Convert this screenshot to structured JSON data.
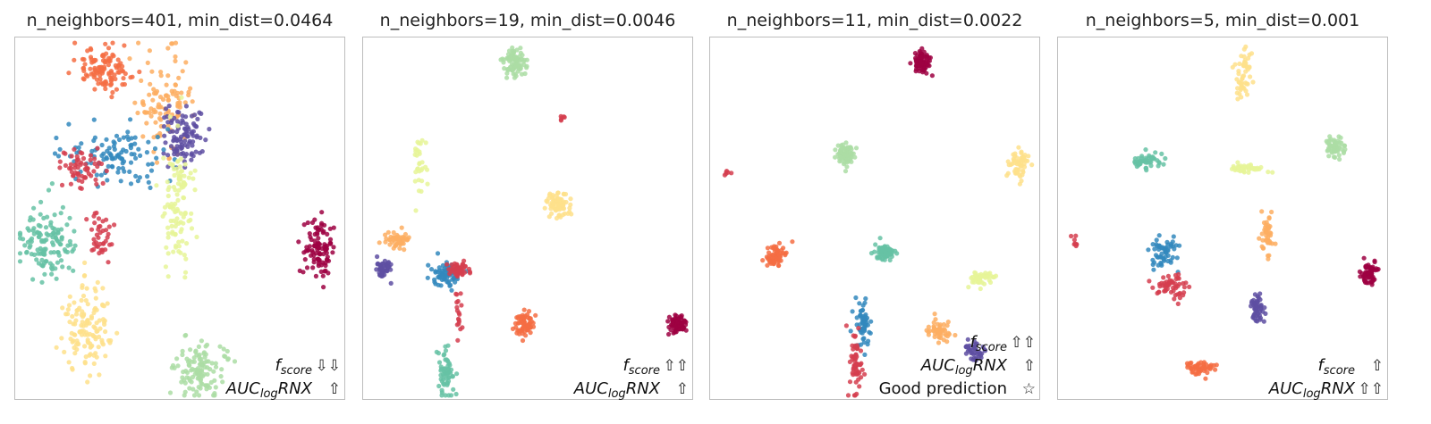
{
  "chart_data": [
    {
      "type": "scatter",
      "title": "n_neighbors=401, min_dist=0.0464",
      "annotations": [
        {
          "label": "f",
          "sub": "score",
          "arrows": "⇩⇩"
        },
        {
          "label": "AUC",
          "sub": "log",
          "suffix": "RNX",
          "arrows": "⇧"
        }
      ],
      "clusters": [
        {
          "color": "#f46d43",
          "cx": 0.27,
          "cy": 0.09,
          "sx": 0.045,
          "sy": 0.03,
          "n": 110
        },
        {
          "color": "#fdae61",
          "cx": 0.45,
          "cy": 0.18,
          "sx": 0.04,
          "sy": 0.06,
          "n": 110
        },
        {
          "color": "#5e4fa2",
          "cx": 0.51,
          "cy": 0.27,
          "sx": 0.035,
          "sy": 0.04,
          "n": 100
        },
        {
          "color": "#3288bd",
          "cx": 0.31,
          "cy": 0.33,
          "sx": 0.08,
          "sy": 0.04,
          "n": 110
        },
        {
          "color": "#d53e4f",
          "cx": 0.2,
          "cy": 0.36,
          "sx": 0.03,
          "sy": 0.025,
          "n": 60
        },
        {
          "color": "#e6f598",
          "cx": 0.49,
          "cy": 0.46,
          "sx": 0.025,
          "sy": 0.1,
          "n": 110
        },
        {
          "color": "#66c2a5",
          "cx": 0.1,
          "cy": 0.57,
          "sx": 0.045,
          "sy": 0.05,
          "n": 130
        },
        {
          "color": "#d53e4f",
          "cx": 0.26,
          "cy": 0.55,
          "sx": 0.02,
          "sy": 0.035,
          "n": 40
        },
        {
          "color": "#9e0142",
          "cx": 0.92,
          "cy": 0.58,
          "sx": 0.02,
          "sy": 0.04,
          "n": 100
        },
        {
          "color": "#fee08b",
          "cx": 0.22,
          "cy": 0.8,
          "sx": 0.035,
          "sy": 0.06,
          "n": 130
        },
        {
          "color": "#abdda4",
          "cx": 0.56,
          "cy": 0.91,
          "sx": 0.04,
          "sy": 0.04,
          "n": 120
        }
      ]
    },
    {
      "type": "scatter",
      "title": "n_neighbors=19, min_dist=0.0046",
      "annotations": [
        {
          "label": "f",
          "sub": "score",
          "arrows": "⇧⇧"
        },
        {
          "label": "AUC",
          "sub": "log",
          "suffix": "RNX",
          "arrows": "⇧"
        }
      ],
      "clusters": [
        {
          "color": "#abdda4",
          "cx": 0.46,
          "cy": 0.07,
          "sx": 0.015,
          "sy": 0.018,
          "n": 90
        },
        {
          "color": "#d53e4f",
          "cx": 0.6,
          "cy": 0.22,
          "sx": 0.006,
          "sy": 0.006,
          "n": 6
        },
        {
          "color": "#e6f598",
          "cx": 0.17,
          "cy": 0.35,
          "sx": 0.01,
          "sy": 0.04,
          "n": 30
        },
        {
          "color": "#fee08b",
          "cx": 0.59,
          "cy": 0.46,
          "sx": 0.02,
          "sy": 0.018,
          "n": 70
        },
        {
          "color": "#fdae61",
          "cx": 0.1,
          "cy": 0.56,
          "sx": 0.02,
          "sy": 0.012,
          "n": 50
        },
        {
          "color": "#5e4fa2",
          "cx": 0.06,
          "cy": 0.64,
          "sx": 0.012,
          "sy": 0.015,
          "n": 45
        },
        {
          "color": "#3288bd",
          "cx": 0.25,
          "cy": 0.65,
          "sx": 0.02,
          "sy": 0.02,
          "n": 70
        },
        {
          "color": "#d53e4f",
          "cx": 0.29,
          "cy": 0.64,
          "sx": 0.015,
          "sy": 0.01,
          "n": 45
        },
        {
          "color": "#d53e4f",
          "cx": 0.29,
          "cy": 0.73,
          "sx": 0.007,
          "sy": 0.04,
          "n": 20
        },
        {
          "color": "#f46d43",
          "cx": 0.49,
          "cy": 0.79,
          "sx": 0.015,
          "sy": 0.018,
          "n": 70
        },
        {
          "color": "#9e0142",
          "cx": 0.95,
          "cy": 0.79,
          "sx": 0.013,
          "sy": 0.013,
          "n": 80
        },
        {
          "color": "#66c2a5",
          "cx": 0.25,
          "cy": 0.92,
          "sx": 0.012,
          "sy": 0.035,
          "n": 60
        }
      ]
    },
    {
      "type": "scatter",
      "title": "n_neighbors=11, min_dist=0.0022",
      "annotations": [
        {
          "label": "f",
          "sub": "score",
          "arrows": "⇧⇧"
        },
        {
          "label": "AUC",
          "sub": "log",
          "suffix": "RNX",
          "arrows": "⇧"
        },
        {
          "label": "Good prediction",
          "arrows": "☆"
        }
      ],
      "clusters": [
        {
          "color": "#9e0142",
          "cx": 0.64,
          "cy": 0.07,
          "sx": 0.013,
          "sy": 0.015,
          "n": 80
        },
        {
          "color": "#abdda4",
          "cx": 0.41,
          "cy": 0.32,
          "sx": 0.015,
          "sy": 0.016,
          "n": 75
        },
        {
          "color": "#d53e4f",
          "cx": 0.05,
          "cy": 0.37,
          "sx": 0.006,
          "sy": 0.006,
          "n": 6
        },
        {
          "color": "#fee08b",
          "cx": 0.93,
          "cy": 0.35,
          "sx": 0.015,
          "sy": 0.02,
          "n": 55
        },
        {
          "color": "#f46d43",
          "cx": 0.2,
          "cy": 0.6,
          "sx": 0.015,
          "sy": 0.016,
          "n": 65
        },
        {
          "color": "#66c2a5",
          "cx": 0.53,
          "cy": 0.59,
          "sx": 0.016,
          "sy": 0.013,
          "n": 65
        },
        {
          "color": "#e6f598",
          "cx": 0.82,
          "cy": 0.66,
          "sx": 0.02,
          "sy": 0.01,
          "n": 45
        },
        {
          "color": "#3288bd",
          "cx": 0.46,
          "cy": 0.78,
          "sx": 0.012,
          "sy": 0.035,
          "n": 60
        },
        {
          "color": "#d53e4f",
          "cx": 0.44,
          "cy": 0.9,
          "sx": 0.01,
          "sy": 0.05,
          "n": 60
        },
        {
          "color": "#fdae61",
          "cx": 0.69,
          "cy": 0.81,
          "sx": 0.02,
          "sy": 0.015,
          "n": 50
        },
        {
          "color": "#5e4fa2",
          "cx": 0.8,
          "cy": 0.86,
          "sx": 0.013,
          "sy": 0.015,
          "n": 40
        }
      ]
    },
    {
      "type": "scatter",
      "title": "n_neighbors=5, min_dist=0.001",
      "annotations": [
        {
          "label": "f",
          "sub": "score",
          "arrows": "⇧"
        },
        {
          "label": "AUC",
          "sub": "log",
          "suffix": "RNX",
          "arrows": "⇧⇧"
        }
      ],
      "clusters": [
        {
          "color": "#fee08b",
          "cx": 0.56,
          "cy": 0.1,
          "sx": 0.012,
          "sy": 0.04,
          "n": 55
        },
        {
          "color": "#66c2a5",
          "cx": 0.27,
          "cy": 0.34,
          "sx": 0.02,
          "sy": 0.013,
          "n": 50
        },
        {
          "color": "#e6f598",
          "cx": 0.56,
          "cy": 0.36,
          "sx": 0.03,
          "sy": 0.006,
          "n": 40
        },
        {
          "color": "#abdda4",
          "cx": 0.84,
          "cy": 0.3,
          "sx": 0.014,
          "sy": 0.016,
          "n": 60
        },
        {
          "color": "#fdae61",
          "cx": 0.63,
          "cy": 0.55,
          "sx": 0.01,
          "sy": 0.035,
          "n": 45
        },
        {
          "color": "#d53e4f",
          "cx": 0.05,
          "cy": 0.56,
          "sx": 0.005,
          "sy": 0.008,
          "n": 8
        },
        {
          "color": "#3288bd",
          "cx": 0.32,
          "cy": 0.59,
          "sx": 0.02,
          "sy": 0.02,
          "n": 60
        },
        {
          "color": "#d53e4f",
          "cx": 0.34,
          "cy": 0.69,
          "sx": 0.025,
          "sy": 0.015,
          "n": 55
        },
        {
          "color": "#9e0142",
          "cx": 0.94,
          "cy": 0.65,
          "sx": 0.012,
          "sy": 0.016,
          "n": 60
        },
        {
          "color": "#5e4fa2",
          "cx": 0.6,
          "cy": 0.75,
          "sx": 0.012,
          "sy": 0.02,
          "n": 50
        },
        {
          "color": "#f46d43",
          "cx": 0.43,
          "cy": 0.91,
          "sx": 0.025,
          "sy": 0.01,
          "n": 55
        }
      ]
    }
  ]
}
